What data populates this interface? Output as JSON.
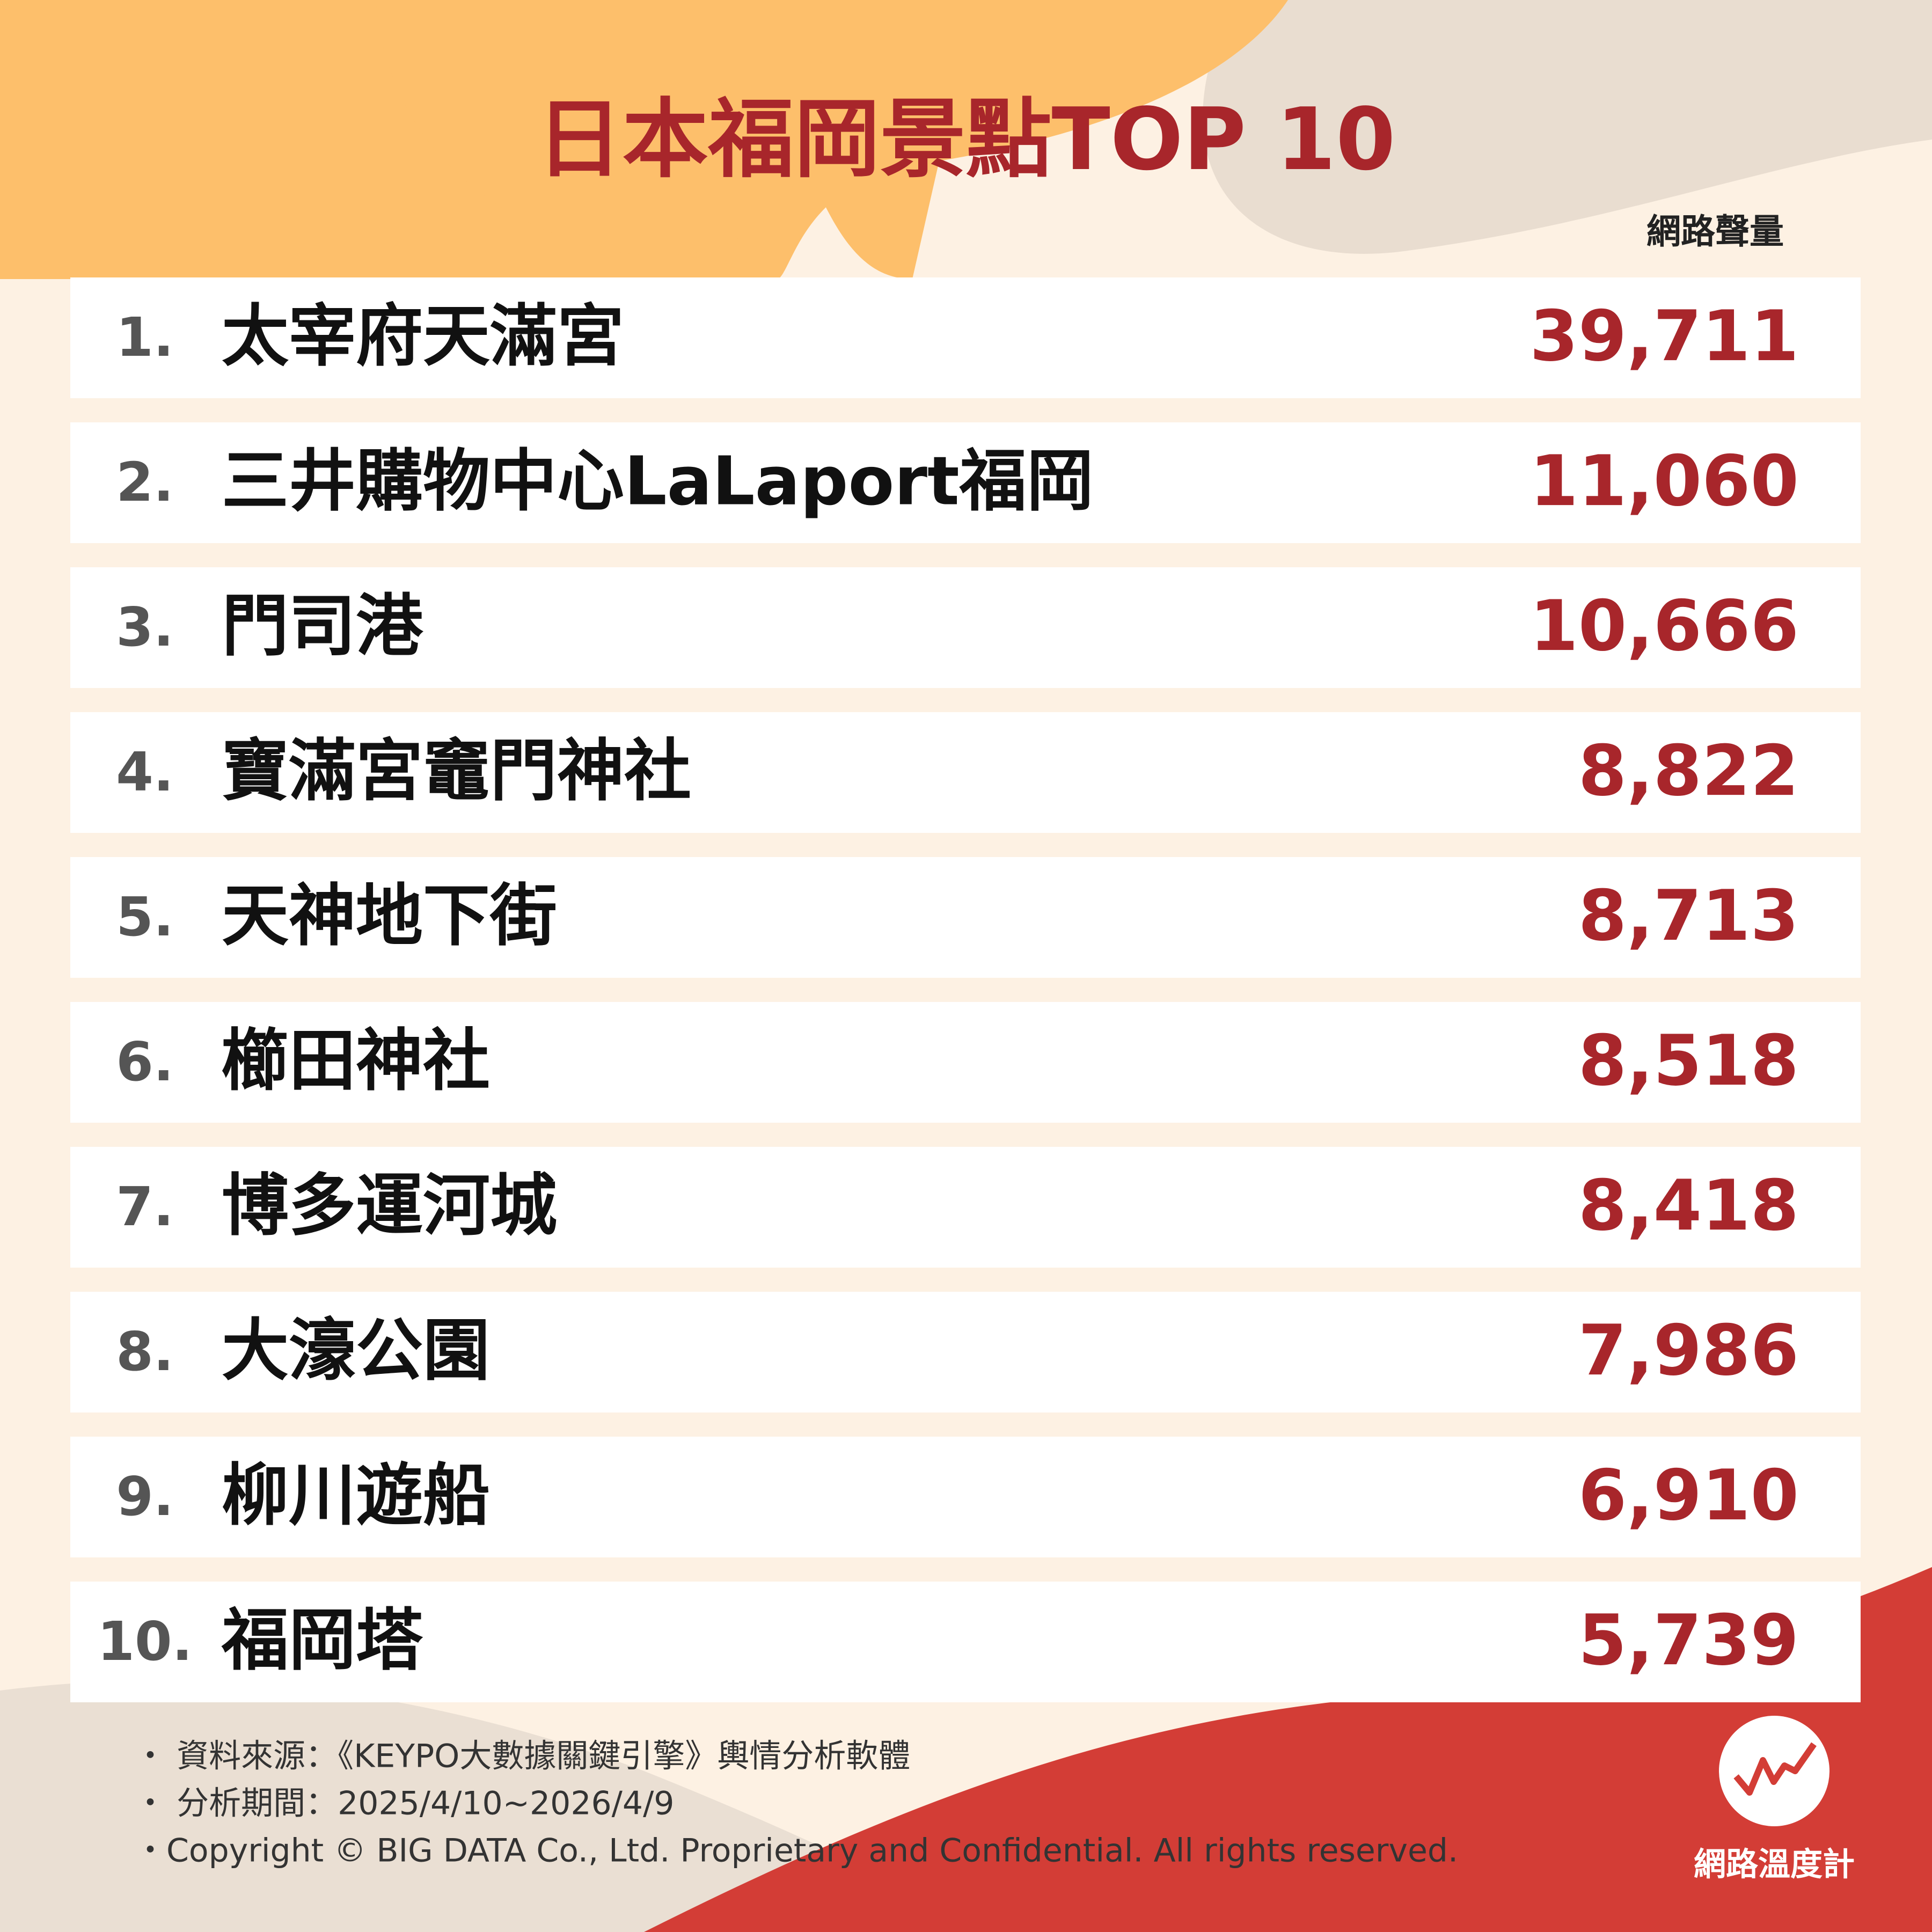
{
  "header": {
    "title": "日本福岡景點TOP 10",
    "column_label": "網路聲量"
  },
  "table": {
    "rows": [
      [
        "1.",
        "太宰府天滿宮",
        "39,711"
      ],
      [
        "2.",
        "三井購物中心LaLaport福岡",
        "11,060"
      ],
      [
        "3.",
        "門司港",
        "10,666"
      ],
      [
        "4.",
        "寶滿宮竈門神社",
        "8,822"
      ],
      [
        "5.",
        "天神地下街",
        "8,713"
      ],
      [
        "6.",
        "櫛田神社",
        "8,518"
      ],
      [
        "7.",
        "博多運河城",
        "8,418"
      ],
      [
        "8.",
        "大濠公園",
        "7,986"
      ],
      [
        "9.",
        "柳川遊船",
        "6,910"
      ],
      [
        "10.",
        "福岡塔",
        "5,739"
      ]
    ]
  },
  "footer": {
    "notes": [
      "・ 資料來源：《KEYPO大數據關鍵引擎》輿情分析軟體",
      "・ 分析期間：2025/4/10~2026/4/9",
      "・Copyright © BIG DATA Co., Ltd. Proprietary and Confidential. All rights reserved."
    ],
    "logo_text": "網路溫度計"
  }
}
